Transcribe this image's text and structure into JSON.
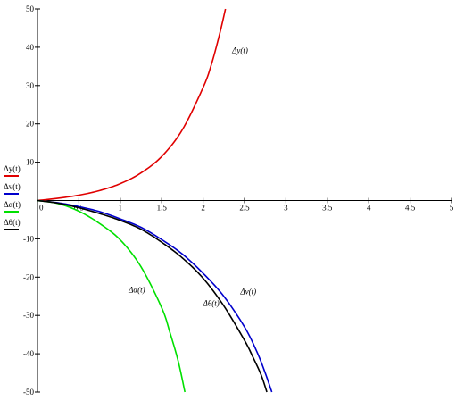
{
  "chart_data": {
    "type": "line",
    "xlim": [
      0,
      5
    ],
    "ylim": [
      -50,
      50
    ],
    "x_ticks": [
      0,
      0.5,
      1,
      1.5,
      2,
      2.5,
      3,
      3.5,
      4,
      4.5,
      5
    ],
    "x_tick_labels": [
      "0",
      "0.5",
      "1",
      "1.5",
      "2",
      "2.5",
      "3",
      "3.5",
      "4",
      "4.5",
      "5"
    ],
    "y_ticks": [
      -50,
      -40,
      -30,
      -20,
      -10,
      10,
      20,
      30,
      40,
      50
    ],
    "y_tick_labels": [
      "-50",
      "-40",
      "-30",
      "-20",
      "-10",
      "10",
      "20",
      "30",
      "40",
      "50"
    ],
    "grid": false,
    "legend_placement": "left",
    "series": [
      {
        "name": "Δy(t)",
        "color": "#e00000",
        "x": [
          0,
          0.25,
          0.5,
          0.75,
          1.0,
          1.25,
          1.5,
          1.75,
          2.0,
          2.1,
          2.2,
          2.27
        ],
        "y": [
          0,
          0.6,
          1.4,
          2.6,
          4.4,
          7.2,
          11.5,
          18.5,
          29.5,
          35.5,
          43.5,
          50
        ]
      },
      {
        "name": "Δv(t)",
        "color": "#0000cc",
        "x": [
          0,
          0.25,
          0.5,
          0.75,
          1.0,
          1.25,
          1.5,
          1.75,
          2.0,
          2.25,
          2.5,
          2.65,
          2.75,
          2.83
        ],
        "y": [
          0,
          -0.6,
          -1.6,
          -2.9,
          -4.8,
          -7.0,
          -10.2,
          -14.0,
          -19.0,
          -25.0,
          -33.0,
          -39.5,
          -45.0,
          -50
        ]
      },
      {
        "name": "Δα(t)",
        "color": "#00e000",
        "x": [
          0,
          0.25,
          0.5,
          0.75,
          1.0,
          1.25,
          1.5,
          1.6,
          1.7,
          1.78
        ],
        "y": [
          0,
          -0.8,
          -2.8,
          -6.0,
          -10.3,
          -17.3,
          -28.0,
          -34.5,
          -42.0,
          -50
        ]
      },
      {
        "name": "Δθ(t)",
        "color": "#000000",
        "x": [
          0,
          0.25,
          0.5,
          0.75,
          1.0,
          1.25,
          1.5,
          1.75,
          2.0,
          2.25,
          2.5,
          2.6,
          2.7,
          2.77
        ],
        "y": [
          0,
          -0.7,
          -1.9,
          -3.4,
          -5.2,
          -7.5,
          -10.9,
          -15.0,
          -20.3,
          -27.5,
          -36.5,
          -40.8,
          -45.5,
          -50
        ]
      }
    ],
    "annotations": [
      {
        "text": "Δy(t)",
        "x": 2.35,
        "y": 38.5
      },
      {
        "text": "Δα(t)",
        "x": 1.1,
        "y": -24.0
      },
      {
        "text": "Δθ(t)",
        "x": 2.0,
        "y": -27.5
      },
      {
        "text": "Δv(t)",
        "x": 2.45,
        "y": -24.5
      }
    ]
  }
}
